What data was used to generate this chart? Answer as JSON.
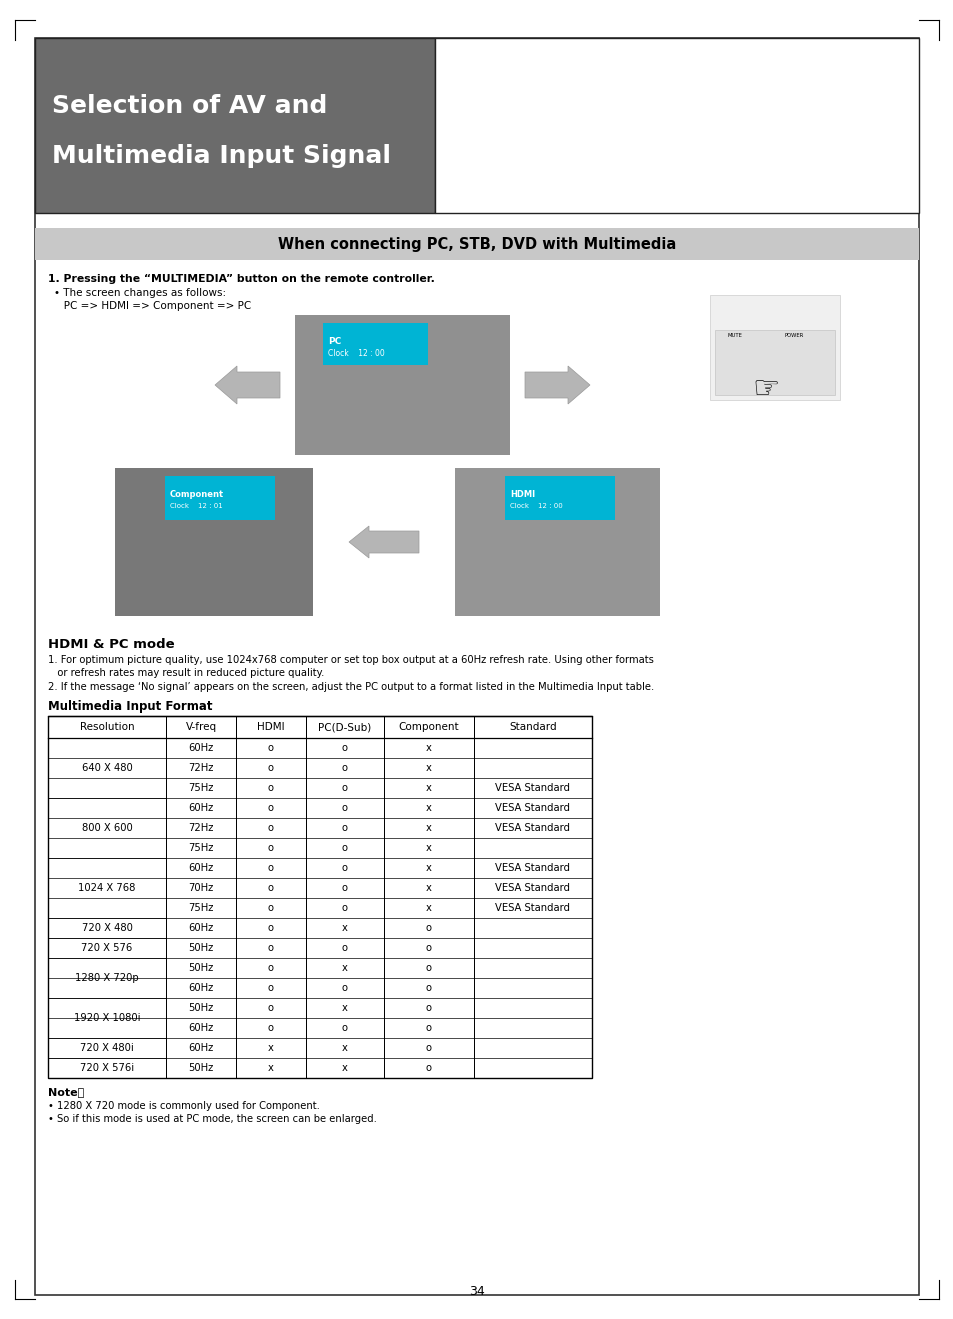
{
  "page_bg": "#ffffff",
  "header_bg": "#6b6b6b",
  "header_title_line1": "Selection of AV and",
  "header_title_line2": "Multimedia Input Signal",
  "header_title_color": "#ffffff",
  "section_banner_bg": "#c8c8c8",
  "section_banner_text": "When connecting PC, STB, DVD with Multimedia",
  "body_text_bold": "1. Pressing the “MULTIMEDIA” button on the remote controller.",
  "body_bullet": "• The screen changes as follows:",
  "body_indent": "   PC => HDMI => Component => PC",
  "hdmi_pc_title": "HDMI & PC mode",
  "hdmi_pc_text1a": "1. For optimum picture quality, use 1024x768 computer or set top box output at a 60Hz refresh rate. Using other formats",
  "hdmi_pc_text1b": "   or refresh rates may result in reduced picture quality.",
  "hdmi_pc_text2": "2. If the message ‘No signal’ appears on the screen, adjust the PC output to a format listed in the Multimedia Input table.",
  "table_title": "Multimedia Input Format",
  "table_headers": [
    "Resolution",
    "V-freq",
    "HDMI",
    "PC(D-Sub)",
    "Component",
    "Standard"
  ],
  "table_col_widths": [
    118,
    70,
    70,
    78,
    90,
    118
  ],
  "table_rows": [
    [
      "",
      "60Hz",
      "o",
      "o",
      "x",
      ""
    ],
    [
      "640 X 480",
      "72Hz",
      "o",
      "o",
      "x",
      ""
    ],
    [
      "",
      "75Hz",
      "o",
      "o",
      "x",
      "VESA Standard"
    ],
    [
      "",
      "60Hz",
      "o",
      "o",
      "x",
      "VESA Standard"
    ],
    [
      "800 X 600",
      "72Hz",
      "o",
      "o",
      "x",
      "VESA Standard"
    ],
    [
      "",
      "75Hz",
      "o",
      "o",
      "x",
      ""
    ],
    [
      "",
      "60Hz",
      "o",
      "o",
      "x",
      "VESA Standard"
    ],
    [
      "1024 X 768",
      "70Hz",
      "o",
      "o",
      "x",
      "VESA Standard"
    ],
    [
      "",
      "75Hz",
      "o",
      "o",
      "x",
      "VESA Standard"
    ],
    [
      "720 X 480",
      "60Hz",
      "o",
      "x",
      "o",
      ""
    ],
    [
      "720 X 576",
      "50Hz",
      "o",
      "o",
      "o",
      ""
    ],
    [
      "",
      "50Hz",
      "o",
      "x",
      "o",
      ""
    ],
    [
      "1280 X 720p",
      "60Hz",
      "o",
      "o",
      "o",
      ""
    ],
    [
      "",
      "50Hz",
      "o",
      "x",
      "o",
      ""
    ],
    [
      "1920 X 1080i",
      "60Hz",
      "o",
      "o",
      "o",
      ""
    ],
    [
      "720 X 480i",
      "60Hz",
      "x",
      "x",
      "o",
      ""
    ],
    [
      "720 X 576i",
      "50Hz",
      "x",
      "x",
      "o",
      ""
    ]
  ],
  "merge_groups": [
    [
      0,
      2,
      "640 X 480"
    ],
    [
      3,
      5,
      "800 X 600"
    ],
    [
      6,
      8,
      "1024 X 768"
    ],
    [
      9,
      9,
      "720 X 480"
    ],
    [
      10,
      10,
      "720 X 576"
    ],
    [
      11,
      12,
      "1280 X 720p"
    ],
    [
      13,
      14,
      "1920 X 1080i"
    ],
    [
      15,
      15,
      "720 X 480i"
    ],
    [
      16,
      16,
      "720 X 576i"
    ]
  ],
  "note_title": "Note：",
  "note_lines": [
    "• 1280 X 720 mode is commonly used for Component.",
    "• So if this mode is used at PC mode, the screen can be enlarged."
  ],
  "page_number": "34",
  "cyan_color": "#00b4d4",
  "arrow_color": "#aaaaaa",
  "img_gray1": "#909090",
  "img_gray2": "#787878",
  "img_gray3": "#959595"
}
